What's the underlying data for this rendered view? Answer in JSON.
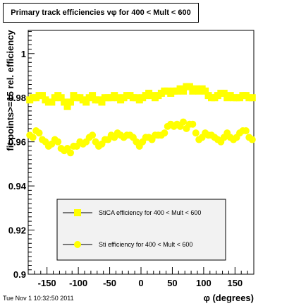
{
  "chart_data": {
    "type": "scatter",
    "title": "Primary track efficiencies vφ for 400 < Mult < 600",
    "xlabel": "φ (degrees)",
    "ylabel": "fit points>=15 rel. efficiency",
    "xlim": [
      -180,
      180
    ],
    "ylim": [
      0.9,
      1.0105
    ],
    "x_ticks": [
      "-150",
      "-100",
      "-50",
      "0",
      "50",
      "100",
      "150"
    ],
    "y_ticks": [
      "0.9",
      "0.92",
      "0.94",
      "0.96",
      "0.98",
      "1"
    ],
    "legend_position": "lower-right",
    "series": [
      {
        "name": "StiCA efficiency  for 400 < Mult < 600",
        "marker": "square",
        "color": "#ffff00",
        "x": [
          -177.5,
          -172.5,
          -167.5,
          -162.5,
          -157.5,
          -152.5,
          -147.5,
          -142.5,
          -137.5,
          -132.5,
          -127.5,
          -122.5,
          -117.5,
          -112.5,
          -107.5,
          -102.5,
          -97.5,
          -92.5,
          -87.5,
          -82.5,
          -77.5,
          -72.5,
          -67.5,
          -62.5,
          -57.5,
          -52.5,
          -47.5,
          -42.5,
          -37.5,
          -32.5,
          -27.5,
          -22.5,
          -17.5,
          -12.5,
          -7.5,
          -2.5,
          2.5,
          7.5,
          12.5,
          17.5,
          22.5,
          27.5,
          32.5,
          37.5,
          42.5,
          47.5,
          52.5,
          57.5,
          62.5,
          67.5,
          72.5,
          77.5,
          82.5,
          87.5,
          92.5,
          97.5,
          102.5,
          107.5,
          112.5,
          117.5,
          122.5,
          127.5,
          132.5,
          137.5,
          142.5,
          147.5,
          152.5,
          157.5,
          162.5,
          167.5,
          172.5,
          177.5
        ],
        "values": [
          0.979,
          0.98,
          0.98,
          0.981,
          0.981,
          0.979,
          0.978,
          0.978,
          0.98,
          0.981,
          0.98,
          0.978,
          0.976,
          0.978,
          0.981,
          0.98,
          0.98,
          0.979,
          0.978,
          0.98,
          0.981,
          0.979,
          0.979,
          0.978,
          0.98,
          0.98,
          0.98,
          0.981,
          0.98,
          0.979,
          0.98,
          0.981,
          0.981,
          0.98,
          0.98,
          0.979,
          0.98,
          0.981,
          0.982,
          0.981,
          0.98,
          0.981,
          0.982,
          0.983,
          0.983,
          0.982,
          0.983,
          0.983,
          0.984,
          0.983,
          0.985,
          0.985,
          0.983,
          0.984,
          0.983,
          0.984,
          0.983,
          0.981,
          0.98,
          0.98,
          0.981,
          0.982,
          0.982,
          0.98,
          0.981,
          0.98,
          0.98,
          0.98,
          0.981,
          0.981,
          0.98,
          0.98
        ]
      },
      {
        "name": "Sti efficiency  for 400 < Mult < 600",
        "marker": "circle",
        "color": "#ffff00",
        "x": [
          -177.5,
          -172.5,
          -167.5,
          -162.5,
          -157.5,
          -152.5,
          -147.5,
          -142.5,
          -137.5,
          -132.5,
          -127.5,
          -122.5,
          -117.5,
          -112.5,
          -107.5,
          -102.5,
          -97.5,
          -92.5,
          -87.5,
          -82.5,
          -77.5,
          -72.5,
          -67.5,
          -62.5,
          -57.5,
          -52.5,
          -47.5,
          -42.5,
          -37.5,
          -32.5,
          -27.5,
          -22.5,
          -17.5,
          -12.5,
          -7.5,
          -2.5,
          2.5,
          7.5,
          12.5,
          17.5,
          22.5,
          27.5,
          32.5,
          37.5,
          42.5,
          47.5,
          52.5,
          57.5,
          62.5,
          67.5,
          72.5,
          77.5,
          82.5,
          87.5,
          92.5,
          97.5,
          102.5,
          107.5,
          112.5,
          117.5,
          122.5,
          127.5,
          132.5,
          137.5,
          142.5,
          147.5,
          152.5,
          157.5,
          162.5,
          167.5,
          172.5,
          177.5
        ],
        "values": [
          0.963,
          0.962,
          0.965,
          0.964,
          0.961,
          0.96,
          0.958,
          0.959,
          0.961,
          0.96,
          0.957,
          0.956,
          0.957,
          0.955,
          0.958,
          0.958,
          0.96,
          0.959,
          0.96,
          0.962,
          0.963,
          0.96,
          0.958,
          0.959,
          0.961,
          0.961,
          0.963,
          0.962,
          0.964,
          0.963,
          0.962,
          0.963,
          0.963,
          0.962,
          0.96,
          0.958,
          0.96,
          0.962,
          0.962,
          0.961,
          0.963,
          0.963,
          0.963,
          0.964,
          0.967,
          0.968,
          0.967,
          0.968,
          0.967,
          0.969,
          0.966,
          0.968,
          0.968,
          0.964,
          0.961,
          0.962,
          0.964,
          0.963,
          0.963,
          0.962,
          0.961,
          0.96,
          0.962,
          0.964,
          0.962,
          0.961,
          0.962,
          0.964,
          0.965,
          0.965,
          0.962,
          0.961
        ]
      }
    ]
  },
  "timestamp": "Tue Nov  1 10:32:50 2011"
}
